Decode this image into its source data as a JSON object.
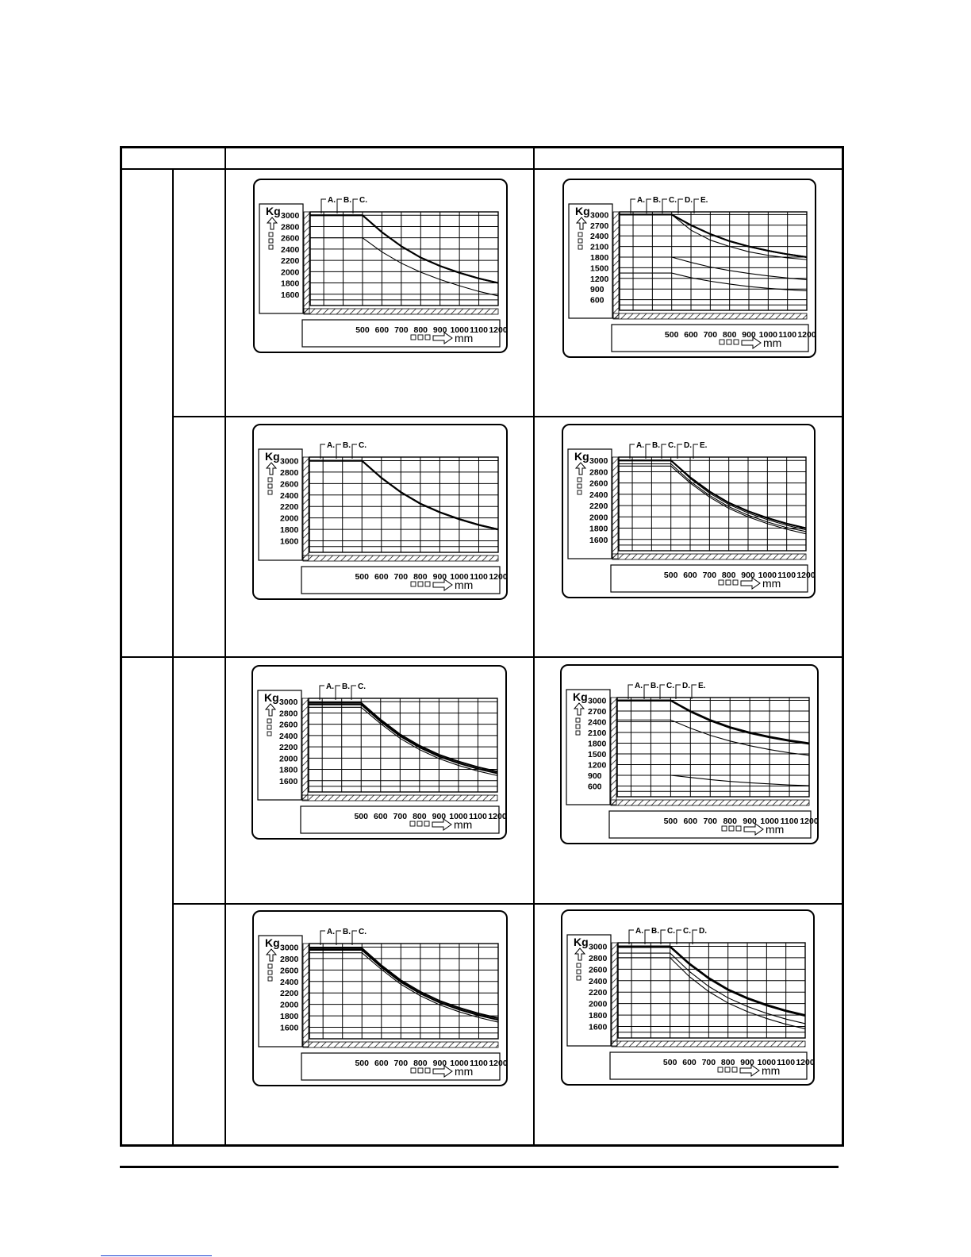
{
  "table": {
    "header": [
      "",
      "",
      ""
    ],
    "groups": [
      "",
      ""
    ],
    "rows": [
      "",
      "",
      "",
      ""
    ]
  },
  "charts": [
    {
      "yunit": "Kg",
      "xunit": "mm",
      "yticks": [
        "3000",
        "2800",
        "2600",
        "2400",
        "2200",
        "2000",
        "1800",
        "1600"
      ],
      "xticks": [
        "500",
        "600",
        "700",
        "800",
        "900",
        "1000",
        "1100",
        "1200"
      ],
      "labels": [
        "A.",
        "B.",
        "C."
      ],
      "chart_data": {
        "type": "line",
        "xlabel": "mm",
        "ylabel": "Kg",
        "ylim": [
          1400,
          3200
        ],
        "x": [
          500,
          600,
          700,
          800,
          900,
          1000,
          1100,
          1200
        ],
        "series": [
          {
            "name": "A.",
            "values": [
              3000,
              2700,
              2450,
              2250,
              2100,
              1980,
              1880,
              1800
            ]
          },
          {
            "name": "B.",
            "values": [
              3000,
              2700,
              2450,
              2250,
              2100,
              1980,
              1880,
              1800
            ]
          },
          {
            "name": "C.",
            "values": [
              2600,
              2350,
              2150,
              1990,
              1860,
              1750,
              1650,
              1570
            ]
          }
        ]
      }
    },
    {
      "yunit": "Kg",
      "xunit": "mm",
      "yticks": [
        "3000",
        "2700",
        "2400",
        "2100",
        "1800",
        "1500",
        "1200",
        "900",
        "600"
      ],
      "xticks": [
        "500",
        "600",
        "700",
        "800",
        "900",
        "1000",
        "1100",
        "1200"
      ],
      "labels": [
        "A.",
        "B.",
        "C.",
        "D.",
        "E."
      ],
      "chart_data": {
        "type": "line",
        "xlabel": "mm",
        "ylabel": "Kg",
        "ylim": [
          300,
          3300
        ],
        "x": [
          500,
          600,
          700,
          800,
          900,
          1000,
          1100,
          1200
        ],
        "series": [
          {
            "name": "A.",
            "values": [
              3000,
              2700,
              2450,
              2250,
              2100,
              1980,
              1880,
              1800
            ]
          },
          {
            "name": "B.",
            "values": [
              3000,
              2700,
              2450,
              2250,
              2100,
              1980,
              1880,
              1800
            ]
          },
          {
            "name": "C.",
            "values": [
              3000,
              2560,
              2280,
              2100,
              1950,
              1850,
              1780,
              1730
            ]
          },
          {
            "name": "D.",
            "values": [
              1800,
              1650,
              1520,
              1420,
              1340,
              1270,
              1210,
              1160
            ]
          },
          {
            "name": "E.",
            "values": [
              1350,
              1220,
              1120,
              1040,
              970,
              920,
              880,
              850
            ]
          }
        ]
      }
    },
    {
      "yunit": "Kg",
      "xunit": "mm",
      "yticks": [
        "3000",
        "2800",
        "2600",
        "2400",
        "2200",
        "2000",
        "1800",
        "1600"
      ],
      "xticks": [
        "500",
        "600",
        "700",
        "800",
        "900",
        "1000",
        "1100",
        "1200"
      ],
      "labels": [
        "A.",
        "B.",
        "C."
      ],
      "chart_data": {
        "type": "line",
        "xlabel": "mm",
        "ylabel": "Kg",
        "ylim": [
          1400,
          3200
        ],
        "x": [
          500,
          600,
          700,
          800,
          900,
          1000,
          1100,
          1200
        ],
        "series": [
          {
            "name": "A.",
            "values": [
              3000,
              2700,
              2450,
              2250,
              2100,
              1980,
              1880,
              1800
            ]
          },
          {
            "name": "B.",
            "values": [
              3000,
              2700,
              2450,
              2250,
              2100,
              1980,
              1880,
              1800
            ]
          },
          {
            "name": "C.",
            "values": [
              2990,
              2690,
              2440,
              2240,
              2090,
              1970,
              1870,
              1790
            ]
          }
        ]
      }
    },
    {
      "yunit": "Kg",
      "xunit": "mm",
      "yticks": [
        "3000",
        "2800",
        "2600",
        "2400",
        "2200",
        "2000",
        "1800",
        "1600"
      ],
      "xticks": [
        "500",
        "600",
        "700",
        "800",
        "900",
        "1000",
        "1100",
        "1200"
      ],
      "labels": [
        "A.",
        "B.",
        "C.",
        "D.",
        "E."
      ],
      "chart_data": {
        "type": "line",
        "xlabel": "mm",
        "ylabel": "Kg",
        "ylim": [
          1400,
          3200
        ],
        "x": [
          500,
          600,
          700,
          800,
          900,
          1000,
          1100,
          1200
        ],
        "series": [
          {
            "name": "A.",
            "values": [
              3000,
              2700,
              2450,
              2250,
              2100,
              1980,
              1880,
              1800
            ]
          },
          {
            "name": "B.",
            "values": [
              3000,
              2700,
              2450,
              2250,
              2100,
              1980,
              1880,
              1800
            ]
          },
          {
            "name": "C.",
            "values": [
              3000,
              2680,
              2420,
              2220,
              2070,
              1950,
              1850,
              1770
            ]
          },
          {
            "name": "D.",
            "values": [
              2940,
              2630,
              2380,
              2180,
              2030,
              1910,
              1810,
              1740
            ]
          },
          {
            "name": "E.",
            "values": [
              2900,
              2600,
              2350,
              2150,
              2000,
              1880,
              1780,
              1700
            ]
          }
        ]
      }
    },
    {
      "yunit": "Kg",
      "xunit": "mm",
      "yticks": [
        "3000",
        "2800",
        "2600",
        "2400",
        "2200",
        "2000",
        "1800",
        "1600"
      ],
      "xticks": [
        "500",
        "600",
        "700",
        "800",
        "900",
        "1000",
        "1100",
        "1200"
      ],
      "labels": [
        "A.",
        "B.",
        "C."
      ],
      "chart_data": {
        "type": "line",
        "xlabel": "mm",
        "ylabel": "Kg",
        "ylim": [
          1400,
          3200
        ],
        "x": [
          500,
          600,
          700,
          800,
          900,
          1000,
          1100,
          1200
        ],
        "series": [
          {
            "name": "A.",
            "values": [
              2980,
              2680,
              2420,
              2220,
              2060,
              1940,
              1840,
              1760
            ]
          },
          {
            "name": "B.",
            "values": [
              2950,
              2650,
              2390,
              2190,
              2030,
              1910,
              1810,
              1730
            ]
          },
          {
            "name": "C.",
            "values": [
              2900,
              2610,
              2350,
              2150,
              1990,
              1870,
              1770,
              1690
            ]
          }
        ]
      }
    },
    {
      "yunit": "Kg",
      "xunit": "mm",
      "yticks": [
        "3000",
        "2700",
        "2400",
        "2100",
        "1800",
        "1500",
        "1200",
        "900",
        "600"
      ],
      "xticks": [
        "500",
        "600",
        "700",
        "800",
        "900",
        "1000",
        "1100",
        "1200"
      ],
      "labels": [
        "A.",
        "B.",
        "C.",
        "D.",
        "E."
      ],
      "chart_data": {
        "type": "line",
        "xlabel": "mm",
        "ylabel": "Kg",
        "ylim": [
          300,
          3300
        ],
        "x": [
          500,
          600,
          700,
          800,
          900,
          1000,
          1100,
          1200
        ],
        "series": [
          {
            "name": "A.",
            "values": [
              3000,
              2700,
              2450,
              2250,
              2100,
              1980,
              1880,
              1800
            ]
          },
          {
            "name": "B.",
            "values": [
              3000,
              2690,
              2440,
              2240,
              2090,
              1970,
              1870,
              1790
            ]
          },
          {
            "name": "C.",
            "values": [
              2980,
              2670,
              2420,
              2220,
              2070,
              1950,
              1850,
              1770
            ]
          },
          {
            "name": "D.",
            "values": [
              2450,
              2220,
              2020,
              1860,
              1730,
              1620,
              1530,
              1460
            ]
          },
          {
            "name": "E.",
            "values": [
              900,
              840,
              780,
              730,
              690,
              660,
              630,
              610
            ]
          }
        ]
      }
    },
    {
      "yunit": "Kg",
      "xunit": "mm",
      "yticks": [
        "3000",
        "2800",
        "2600",
        "2400",
        "2200",
        "2000",
        "1800",
        "1600"
      ],
      "xticks": [
        "500",
        "600",
        "700",
        "800",
        "900",
        "1000",
        "1100",
        "1200"
      ],
      "labels": [
        "A.",
        "B.",
        "C."
      ],
      "chart_data": {
        "type": "line",
        "xlabel": "mm",
        "ylabel": "Kg",
        "ylim": [
          1400,
          3200
        ],
        "x": [
          500,
          600,
          700,
          800,
          900,
          1000,
          1100,
          1200
        ],
        "series": [
          {
            "name": "A.",
            "values": [
              2980,
              2680,
              2420,
              2220,
              2060,
              1940,
              1840,
              1760
            ]
          },
          {
            "name": "B.",
            "values": [
              2950,
              2650,
              2390,
              2190,
              2030,
              1910,
              1810,
              1730
            ]
          },
          {
            "name": "C.",
            "values": [
              2900,
              2610,
              2350,
              2150,
              1990,
              1870,
              1770,
              1690
            ]
          }
        ]
      }
    },
    {
      "yunit": "Kg",
      "xunit": "mm",
      "yticks": [
        "3000",
        "2800",
        "2600",
        "2400",
        "2200",
        "2000",
        "1800",
        "1600"
      ],
      "xticks": [
        "500",
        "600",
        "700",
        "800",
        "900",
        "1000",
        "1100",
        "1200"
      ],
      "labels": [
        "A.",
        "B.",
        "C.",
        "C.",
        "D."
      ],
      "chart_data": {
        "type": "line",
        "xlabel": "mm",
        "ylabel": "Kg",
        "ylim": [
          1400,
          3200
        ],
        "x": [
          500,
          600,
          700,
          800,
          900,
          1000,
          1100,
          1200
        ],
        "series": [
          {
            "name": "A.",
            "values": [
              3000,
              2700,
              2450,
              2250,
              2100,
              1980,
              1880,
              1800
            ]
          },
          {
            "name": "B.",
            "values": [
              2990,
              2690,
              2440,
              2240,
              2090,
              1970,
              1870,
              1790
            ]
          },
          {
            "name": "C.",
            "values": [
              2980,
              2680,
              2430,
              2230,
              2080,
              1960,
              1860,
              1780
            ]
          },
          {
            "name": "C.",
            "values": [
              2880,
              2560,
              2300,
              2100,
              1950,
              1830,
              1730,
              1650
            ]
          },
          {
            "name": "D.",
            "values": [
              2800,
              2470,
              2210,
              2010,
              1860,
              1740,
              1640,
              1560
            ]
          }
        ]
      }
    }
  ]
}
